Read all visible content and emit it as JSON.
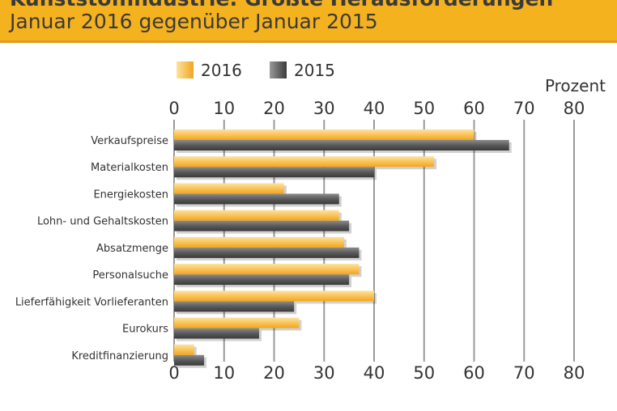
{
  "header": {
    "title_line1": "Kunststoffindustrie: Größte Heraus­forderungen",
    "title_line2": "Januar 2016 gegenüber Januar 2015"
  },
  "colors": {
    "header_bg": "#f5b21f",
    "bar_2016": "#f7b23b",
    "bar_2015": "#555555",
    "grid": "#9a9a9a"
  },
  "chart_data": {
    "type": "bar",
    "orientation": "horizontal",
    "unit_label": "Prozent",
    "categories": [
      "Verkaufspreise",
      "Materialkosten",
      "Energiekosten",
      "Lohn- und Gehaltskosten",
      "Absatzmenge",
      "Personalsuche",
      "Lieferfähigkeit Vorlieferanten",
      "Eurokurs",
      "Kreditfinanzierung"
    ],
    "series": [
      {
        "name": "2016",
        "color": "#f7b23b",
        "values": [
          60,
          52,
          22,
          33,
          34,
          37,
          40,
          25,
          4
        ]
      },
      {
        "name": "2015",
        "color": "#555555",
        "values": [
          67,
          40,
          33,
          35,
          37,
          35,
          24,
          17,
          6
        ]
      }
    ],
    "xlim": [
      0,
      80
    ],
    "ticks": [
      0,
      10,
      20,
      30,
      40,
      50,
      60,
      70,
      80
    ],
    "grid": true,
    "legend_position": "top"
  },
  "footer": {
    "left": "",
    "right": ""
  }
}
